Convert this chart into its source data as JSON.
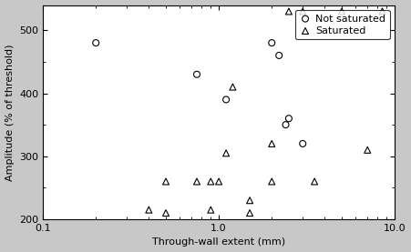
{
  "not_saturated_x": [
    0.2,
    0.75,
    1.1,
    2.0,
    2.2,
    2.4,
    2.5,
    3.0
  ],
  "not_saturated_y": [
    480,
    430,
    390,
    480,
    460,
    350,
    360,
    320
  ],
  "saturated_x": [
    0.4,
    0.5,
    0.5,
    0.75,
    0.9,
    0.9,
    1.0,
    1.1,
    1.2,
    1.5,
    1.5,
    2.0,
    2.0,
    2.5,
    3.0,
    3.5,
    5.0,
    7.0,
    8.5
  ],
  "saturated_y": [
    215,
    210,
    260,
    260,
    215,
    260,
    260,
    305,
    410,
    230,
    210,
    260,
    320,
    530,
    530,
    260,
    530,
    310,
    530
  ],
  "xlabel": "Through-wall extent (mm)",
  "ylabel": "Amplitude (% of threshold)",
  "xlim": [
    0.1,
    10.0
  ],
  "ylim": [
    200,
    540
  ],
  "yticks": [
    200,
    300,
    400,
    500
  ],
  "bg_color": "#c8c8c8",
  "plot_bg_color": "#ffffff",
  "legend_labels": [
    "Not saturated",
    "Saturated"
  ],
  "label_fontsize": 8,
  "tick_fontsize": 8,
  "legend_fontsize": 8
}
